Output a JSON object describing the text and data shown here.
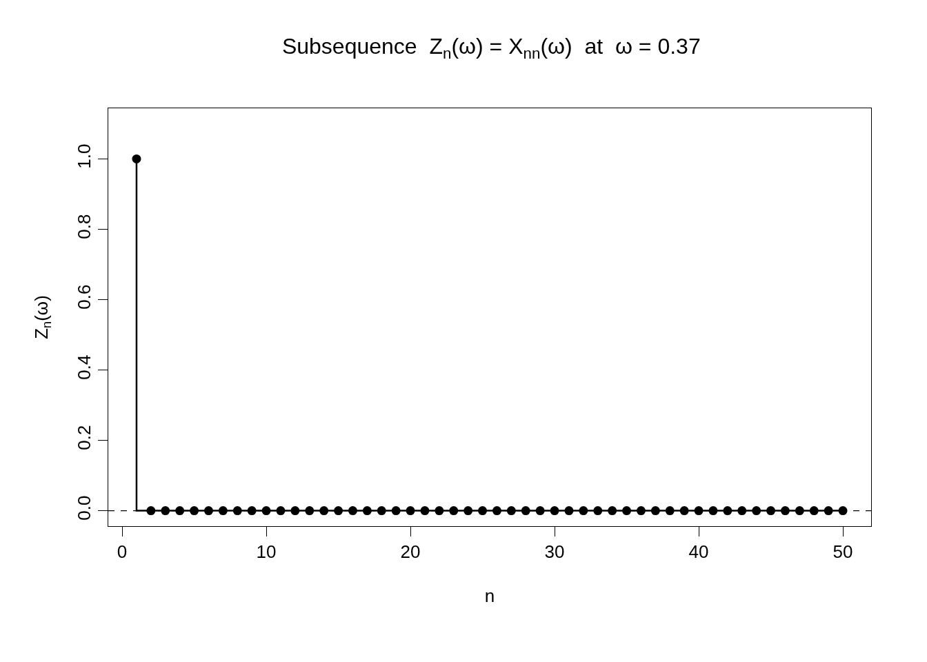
{
  "chart_data": {
    "type": "step",
    "title": "Subsequence  Z$_{n}$(ω) = X$_{nn}$(ω)  at  ω = 0.37",
    "xlabel": "n",
    "ylabel": "Z$_{n}$(ω)",
    "x": [
      1,
      2,
      3,
      4,
      5,
      6,
      7,
      8,
      9,
      10,
      11,
      12,
      13,
      14,
      15,
      16,
      17,
      18,
      19,
      20,
      21,
      22,
      23,
      24,
      25,
      26,
      27,
      28,
      29,
      30,
      31,
      32,
      33,
      34,
      35,
      36,
      37,
      38,
      39,
      40,
      41,
      42,
      43,
      44,
      45,
      46,
      47,
      48,
      49,
      50
    ],
    "series": [
      {
        "color": "#000000",
        "values": [
          1,
          0,
          0,
          0,
          0,
          0,
          0,
          0,
          0,
          0,
          0,
          0,
          0,
          0,
          0,
          0,
          0,
          0,
          0,
          0,
          0,
          0,
          0,
          0,
          0,
          0,
          0,
          0,
          0,
          0,
          0,
          0,
          0,
          0,
          0,
          0,
          0,
          0,
          0,
          0,
          0,
          0,
          0,
          0,
          0,
          0,
          0,
          0,
          0,
          0
        ]
      }
    ],
    "marker": "circle",
    "line_style": "solid",
    "xlim": [
      -0.96,
      51.96
    ],
    "ylim": [
      -0.044,
      1.144
    ],
    "xticks": [
      0,
      10,
      20,
      30,
      40,
      50
    ],
    "yticks": [
      {
        "value": 0,
        "label": "0.0"
      },
      {
        "value": 0.2,
        "label": "0.2"
      },
      {
        "value": 0.4,
        "label": "0.4"
      },
      {
        "value": 0.6,
        "label": "0.6"
      },
      {
        "value": 0.8,
        "label": "0.8"
      },
      {
        "value": 1,
        "label": "1.0"
      }
    ],
    "ref_lines": [
      {
        "axis": "y",
        "value": 0,
        "color": "#000000",
        "line_style": "dashed"
      }
    ]
  }
}
